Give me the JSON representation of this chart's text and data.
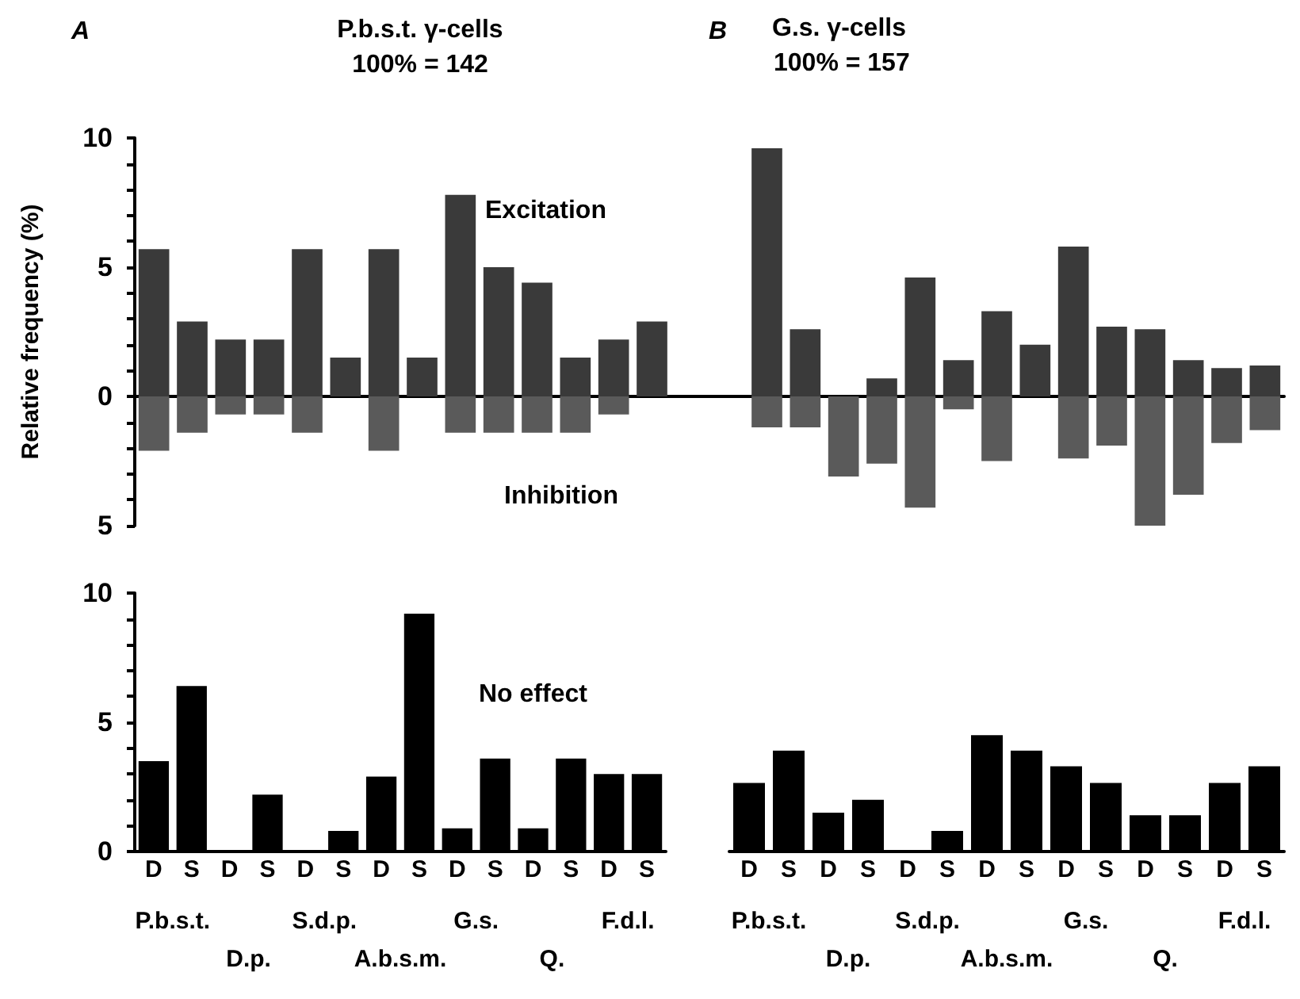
{
  "chart_data": [
    {
      "type": "bar",
      "title": "P.b.s.t. γ-cells",
      "subtitle": "100% = 142",
      "ylabel": "Relative frequency (%)",
      "annotations": [
        "A",
        "Excitation",
        "Inhibition",
        "B",
        "G.s. γ-cells",
        "100% = 157"
      ],
      "categories": [
        null,
        null,
        null,
        null,
        null,
        null,
        null,
        null,
        null,
        null,
        null,
        null,
        null,
        null,
        null,
        null,
        null,
        null,
        null,
        null,
        null,
        null,
        null,
        null,
        null,
        null,
        null,
        null,
        null,
        null
      ],
      "stacked": true,
      "tick_labels": "y",
      "legend": false,
      "ylim": [
        -5,
        10
      ],
      "yticks": [
        {
          "value": -5,
          "label": "5"
        },
        {
          "value": -4,
          "label": null
        },
        {
          "value": -3,
          "label": null
        },
        {
          "value": -2,
          "label": null
        },
        {
          "value": -1,
          "label": null
        },
        0,
        {
          "value": 1,
          "label": null
        },
        {
          "value": 2,
          "label": null
        },
        {
          "value": 3,
          "label": null
        },
        {
          "value": 4,
          "label": null
        },
        5,
        {
          "value": 6,
          "label": null
        },
        {
          "value": 7,
          "label": null
        },
        {
          "value": 8,
          "label": null
        },
        {
          "value": 9,
          "label": null
        },
        10
      ],
      "series": [
        {
          "color": "#3a3a3a",
          "values": [
            5.7,
            2.9,
            2.2,
            2.2,
            5.7,
            1.5,
            5.7,
            1.5,
            7.8,
            5.0,
            4.4,
            1.5,
            2.2,
            2.9,
            null,
            null,
            9.6,
            2.6,
            0,
            0.7,
            4.6,
            1.4,
            3.3,
            2.0,
            5.8,
            2.7,
            2.6,
            1.4,
            1.1,
            1.2
          ]
        },
        {
          "color": "#5a5a5a",
          "values": [
            -2.1,
            -1.4,
            -0.7,
            -0.7,
            -1.4,
            0,
            -2.1,
            0,
            -1.4,
            -1.4,
            -1.4,
            -1.4,
            -0.7,
            0,
            null,
            null,
            -1.2,
            -1.2,
            -3.1,
            -2.6,
            -4.3,
            -0.5,
            -2.5,
            0,
            -2.4,
            -1.9,
            -5.0,
            -3.8,
            -1.8,
            -1.3
          ]
        }
      ]
    },
    {
      "type": "bar",
      "annotations": [
        "No effect"
      ],
      "categories": [
        "P.b.s.t.",
        "D.p.",
        "S.d.p.",
        "A.b.s.m.",
        "G.s.",
        "Q.",
        "F.d.l."
      ],
      "legend": false,
      "ylim": [
        0,
        10
      ],
      "yticks": [
        0,
        {
          "value": 1,
          "label": null
        },
        {
          "value": 2,
          "label": null
        },
        {
          "value": 3,
          "label": null
        },
        {
          "value": 4,
          "label": null
        },
        5,
        {
          "value": 6,
          "label": null
        },
        {
          "value": 7,
          "label": null
        },
        {
          "value": 8,
          "label": null
        },
        {
          "value": 9,
          "label": null
        },
        10
      ],
      "series": [
        {
          "name": "D",
          "color": "#000000",
          "values": [
            3.5,
            0,
            0,
            2.9,
            0.9,
            0.9,
            3.0
          ]
        },
        {
          "name": "S",
          "color": "#000000",
          "values": [
            6.4,
            2.2,
            0.8,
            9.2,
            3.6,
            3.6,
            3.0
          ]
        }
      ]
    },
    {
      "type": "bar",
      "categories": [
        "P.b.s.t.",
        "D.p.",
        "S.d.p.",
        "A.b.s.m.",
        "G.s.",
        "Q.",
        "F.d.l."
      ],
      "tick_labels": "x",
      "legend": false,
      "ylim": [
        0,
        10
      ],
      "series": [
        {
          "name": "D",
          "color": "#000000",
          "values": [
            2.65,
            1.5,
            0,
            4.5,
            3.3,
            1.4,
            2.65
          ]
        },
        {
          "name": "S",
          "color": "#000000",
          "values": [
            3.9,
            2.0,
            0.8,
            3.9,
            2.65,
            1.4,
            3.3
          ]
        }
      ]
    }
  ]
}
